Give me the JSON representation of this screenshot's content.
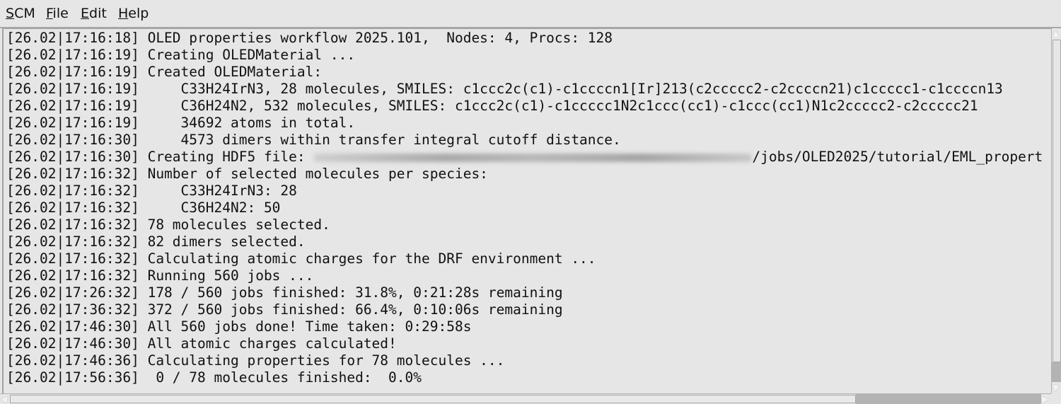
{
  "menu": [
    {
      "label": "SCM",
      "mnemonic": "S",
      "rest": "CM"
    },
    {
      "label": "File",
      "mnemonic": "F",
      "rest": "ile"
    },
    {
      "label": "Edit",
      "mnemonic": "E",
      "rest": "dit"
    },
    {
      "label": "Help",
      "mnemonic": "H",
      "rest": "elp"
    }
  ],
  "log": {
    "lines": [
      "[26.02|17:16:18] OLED properties workflow 2025.101,  Nodes: 4, Procs: 128",
      "[26.02|17:16:19] Creating OLEDMaterial ...",
      "[26.02|17:16:19] Created OLEDMaterial:",
      "[26.02|17:16:19]     C33H24IrN3, 28 molecules, SMILES: c1ccc2c(c1)-c1ccccn1[Ir]213(c2ccccc2-c2ccccn21)c1ccccc1-c1ccccn13",
      "[26.02|17:16:19]     C36H24N2, 532 molecules, SMILES: c1ccc2c(c1)-c1ccccc1N2c1ccc(cc1)-c1ccc(cc1)N1c2ccccc2-c2ccccc21",
      "[26.02|17:16:19]     34692 atoms in total.",
      "[26.02|17:16:30]     4573 dimers within transfer integral cutoff distance.",
      "[26.02|17:16:32] Number of selected molecules per species:",
      "[26.02|17:16:32]     C33H24IrN3: 28",
      "[26.02|17:16:32]     C36H24N2: 50",
      "[26.02|17:16:32] 78 molecules selected.",
      "[26.02|17:16:32] 82 dimers selected.",
      "[26.02|17:16:32] Calculating atomic charges for the DRF environment ...",
      "[26.02|17:16:32] Running 560 jobs ...",
      "[26.02|17:26:32] 178 / 560 jobs finished: 31.8%, 0:21:28s remaining",
      "[26.02|17:36:32] 372 / 560 jobs finished: 66.4%, 0:10:06s remaining",
      "[26.02|17:46:30] All 560 jobs done! Time taken: 0:29:58s",
      "[26.02|17:46:30] All atomic charges calculated!",
      "[26.02|17:46:36] Calculating properties for 78 molecules ...",
      "[26.02|17:56:36]  0 / 78 molecules finished:  0.0%"
    ],
    "hdf5_line": {
      "prefix": "[26.02|17:16:30] Creating HDF5 file: ",
      "suffix": "/jobs/OLED2025/tutorial/EML_propert"
    }
  }
}
